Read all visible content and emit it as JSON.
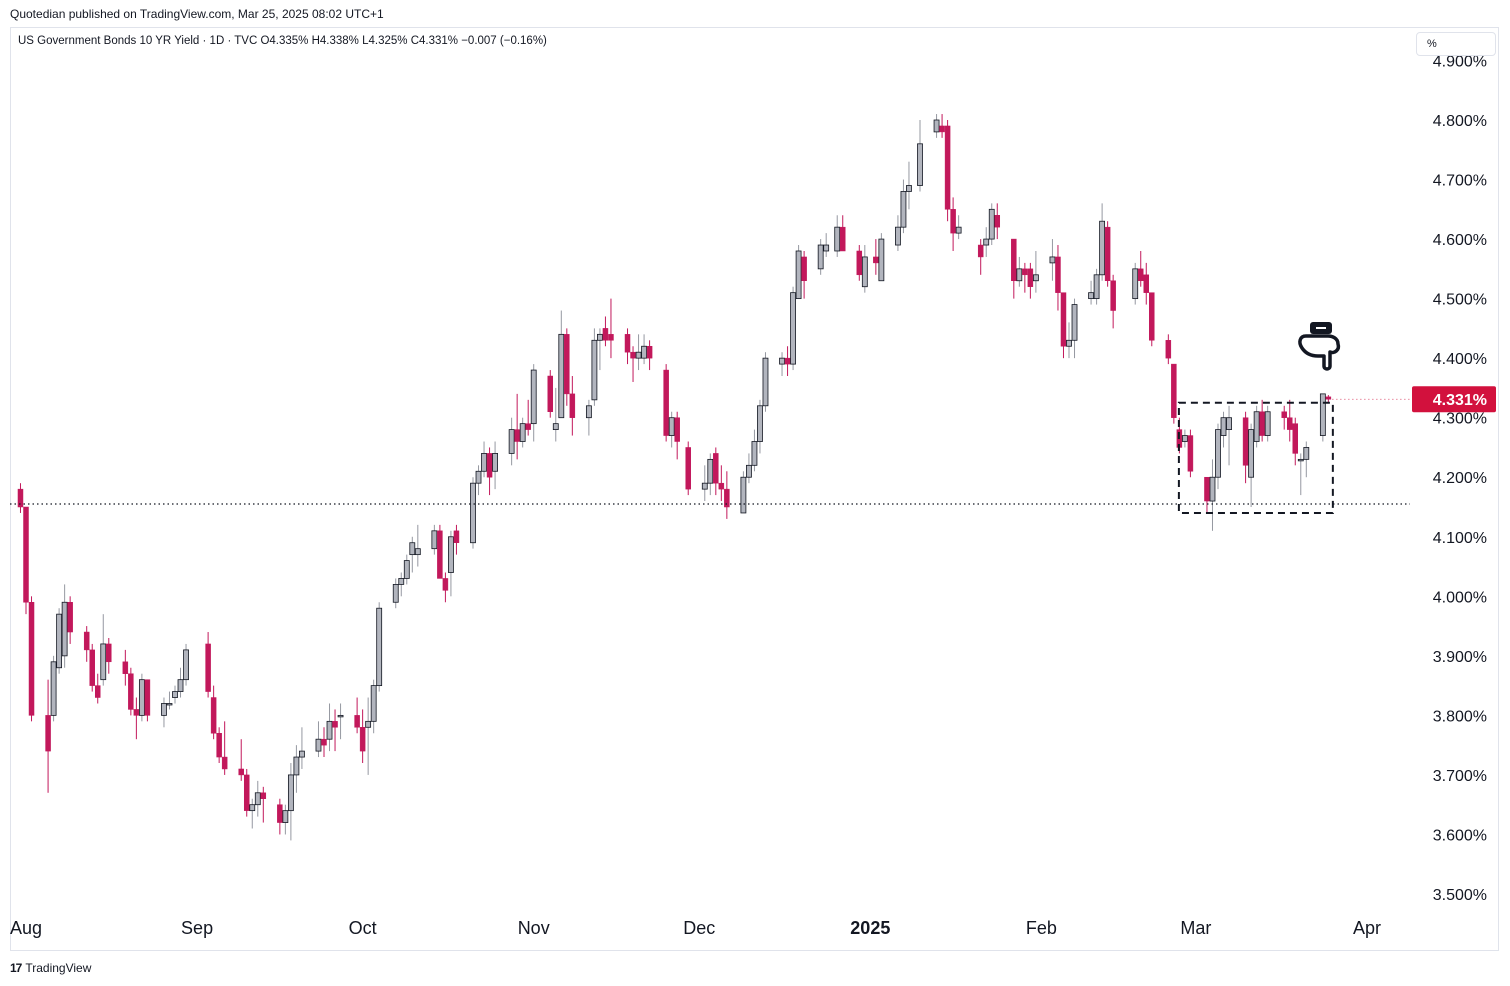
{
  "header": {
    "publisher": "Quotedian published on TradingView.com, Mar 25, 2025 08:02 UTC+1",
    "legend": "US Government Bonds 10 YR Yield · 1D · TVC  O4.335%  H4.338%  L4.325%  C4.331%  −0.007 (−0.16%)",
    "unit_button": "%"
  },
  "footer": {
    "brand": "TradingView",
    "logo": "17"
  },
  "colors": {
    "up": "#b2b5be",
    "down": "#c2185b",
    "last_price_bg": "#d2113d",
    "grid": "#f0f3fa"
  },
  "icons": {
    "annotation": "pointing-hand-down-icon"
  },
  "chart_data": {
    "type": "candlestick",
    "title": "US Government Bonds 10 YR Yield",
    "interval": "1D",
    "source": "TVC",
    "ylim": [
      3.47,
      4.92
    ],
    "yticks": [
      "3.500%",
      "3.600%",
      "3.700%",
      "3.800%",
      "3.900%",
      "4.000%",
      "4.100%",
      "4.200%",
      "4.300%",
      "4.400%",
      "4.500%",
      "4.600%",
      "4.700%",
      "4.800%",
      "4.900%"
    ],
    "xticks": [
      {
        "label": "Aug",
        "date": "2024-08-01"
      },
      {
        "label": "Sep",
        "date": "2024-09-01"
      },
      {
        "label": "Oct",
        "date": "2024-10-01"
      },
      {
        "label": "Nov",
        "date": "2024-11-01"
      },
      {
        "label": "Dec",
        "date": "2024-12-01"
      },
      {
        "label": "2025",
        "date": "2025-01-01",
        "bold": true
      },
      {
        "label": "Feb",
        "date": "2025-02-01"
      },
      {
        "label": "Mar",
        "date": "2025-03-01"
      },
      {
        "label": "Apr",
        "date": "2025-04-01"
      }
    ],
    "last_price": {
      "value": 4.331,
      "label": "4.331%"
    },
    "support_line": 4.155,
    "range_box": {
      "start": "2025-02-27",
      "end": "2025-03-24",
      "low": 4.14,
      "high": 4.325
    },
    "candles": [
      [
        "2024-07-31",
        4.18,
        4.19,
        4.14,
        4.15
      ],
      [
        "2024-08-01",
        4.15,
        4.15,
        3.97,
        3.99
      ],
      [
        "2024-08-02",
        3.99,
        4.0,
        3.79,
        3.8
      ],
      [
        "2024-08-05",
        3.8,
        3.86,
        3.67,
        3.74
      ],
      [
        "2024-08-06",
        3.8,
        3.9,
        3.79,
        3.89
      ],
      [
        "2024-08-07",
        3.88,
        3.98,
        3.87,
        3.97
      ],
      [
        "2024-08-08",
        3.9,
        4.02,
        3.88,
        3.99
      ],
      [
        "2024-08-09",
        3.99,
        4.0,
        3.92,
        3.94
      ],
      [
        "2024-08-12",
        3.94,
        3.95,
        3.89,
        3.91
      ],
      [
        "2024-08-13",
        3.91,
        3.92,
        3.84,
        3.85
      ],
      [
        "2024-08-14",
        3.85,
        3.87,
        3.82,
        3.83
      ],
      [
        "2024-08-15",
        3.86,
        3.97,
        3.85,
        3.92
      ],
      [
        "2024-08-16",
        3.92,
        3.93,
        3.87,
        3.89
      ],
      [
        "2024-08-19",
        3.89,
        3.91,
        3.85,
        3.87
      ],
      [
        "2024-08-20",
        3.87,
        3.88,
        3.8,
        3.81
      ],
      [
        "2024-08-21",
        3.81,
        3.83,
        3.76,
        3.8
      ],
      [
        "2024-08-22",
        3.8,
        3.87,
        3.79,
        3.86
      ],
      [
        "2024-08-23",
        3.86,
        3.86,
        3.79,
        3.8
      ],
      [
        "2024-08-26",
        3.8,
        3.83,
        3.78,
        3.82
      ],
      [
        "2024-08-27",
        3.82,
        3.84,
        3.81,
        3.82
      ],
      [
        "2024-08-28",
        3.83,
        3.85,
        3.82,
        3.84
      ],
      [
        "2024-08-29",
        3.84,
        3.88,
        3.83,
        3.86
      ],
      [
        "2024-08-30",
        3.86,
        3.92,
        3.85,
        3.91
      ],
      [
        "2024-09-03",
        3.92,
        3.94,
        3.83,
        3.84
      ],
      [
        "2024-09-04",
        3.83,
        3.85,
        3.76,
        3.77
      ],
      [
        "2024-09-05",
        3.77,
        3.78,
        3.72,
        3.73
      ],
      [
        "2024-09-06",
        3.73,
        3.79,
        3.7,
        3.71
      ],
      [
        "2024-09-09",
        3.71,
        3.76,
        3.69,
        3.7
      ],
      [
        "2024-09-10",
        3.7,
        3.71,
        3.63,
        3.64
      ],
      [
        "2024-09-11",
        3.64,
        3.66,
        3.61,
        3.65
      ],
      [
        "2024-09-12",
        3.65,
        3.69,
        3.63,
        3.67
      ],
      [
        "2024-09-13",
        3.67,
        3.68,
        3.62,
        3.66
      ],
      [
        "2024-09-16",
        3.65,
        3.66,
        3.6,
        3.62
      ],
      [
        "2024-09-17",
        3.62,
        3.65,
        3.6,
        3.64
      ],
      [
        "2024-09-18",
        3.64,
        3.72,
        3.59,
        3.7
      ],
      [
        "2024-09-19",
        3.7,
        3.75,
        3.67,
        3.73
      ],
      [
        "2024-09-20",
        3.73,
        3.78,
        3.71,
        3.74
      ],
      [
        "2024-09-23",
        3.74,
        3.79,
        3.73,
        3.76
      ],
      [
        "2024-09-24",
        3.76,
        3.78,
        3.73,
        3.75
      ],
      [
        "2024-09-25",
        3.76,
        3.82,
        3.74,
        3.79
      ],
      [
        "2024-09-26",
        3.79,
        3.81,
        3.74,
        3.78
      ],
      [
        "2024-09-27",
        3.8,
        3.82,
        3.76,
        3.8
      ],
      [
        "2024-09-30",
        3.8,
        3.83,
        3.77,
        3.78
      ],
      [
        "2024-10-01",
        3.78,
        3.81,
        3.72,
        3.74
      ],
      [
        "2024-10-02",
        3.78,
        3.83,
        3.7,
        3.79
      ],
      [
        "2024-10-03",
        3.79,
        3.86,
        3.77,
        3.85
      ],
      [
        "2024-10-04",
        3.85,
        3.99,
        3.84,
        3.98
      ],
      [
        "2024-10-07",
        3.99,
        4.03,
        3.98,
        4.02
      ],
      [
        "2024-10-08",
        4.02,
        4.04,
        4.0,
        4.03
      ],
      [
        "2024-10-09",
        4.03,
        4.07,
        4.02,
        4.06
      ],
      [
        "2024-10-10",
        4.07,
        4.1,
        4.04,
        4.09
      ],
      [
        "2024-10-11",
        4.07,
        4.12,
        4.05,
        4.08
      ],
      [
        "2024-10-14",
        4.08,
        4.12,
        4.07,
        4.11
      ],
      [
        "2024-10-15",
        4.11,
        4.12,
        4.03,
        4.03
      ],
      [
        "2024-10-16",
        4.03,
        4.04,
        3.99,
        4.01
      ],
      [
        "2024-10-17",
        4.04,
        4.11,
        4.0,
        4.1
      ],
      [
        "2024-10-18",
        4.11,
        4.12,
        4.07,
        4.09
      ],
      [
        "2024-10-21",
        4.09,
        4.2,
        4.08,
        4.19
      ],
      [
        "2024-10-22",
        4.19,
        4.22,
        4.17,
        4.21
      ],
      [
        "2024-10-23",
        4.21,
        4.26,
        4.2,
        4.24
      ],
      [
        "2024-10-24",
        4.24,
        4.25,
        4.17,
        4.2
      ],
      [
        "2024-10-25",
        4.21,
        4.26,
        4.18,
        4.24
      ],
      [
        "2024-10-28",
        4.24,
        4.3,
        4.22,
        4.28
      ],
      [
        "2024-10-29",
        4.28,
        4.34,
        4.23,
        4.26
      ],
      [
        "2024-10-30",
        4.26,
        4.3,
        4.25,
        4.29
      ],
      [
        "2024-10-31",
        4.29,
        4.33,
        4.27,
        4.28
      ],
      [
        "2024-11-01",
        4.29,
        4.39,
        4.26,
        4.38
      ],
      [
        "2024-11-04",
        4.37,
        4.38,
        4.3,
        4.31
      ],
      [
        "2024-11-05",
        4.28,
        4.35,
        4.26,
        4.29
      ],
      [
        "2024-11-06",
        4.3,
        4.48,
        4.3,
        4.44
      ],
      [
        "2024-11-07",
        4.44,
        4.45,
        4.32,
        4.34
      ],
      [
        "2024-11-08",
        4.34,
        4.37,
        4.27,
        4.3
      ],
      [
        "2024-11-11",
        4.3,
        4.33,
        4.27,
        4.32
      ],
      [
        "2024-11-12",
        4.33,
        4.45,
        4.32,
        4.43
      ],
      [
        "2024-11-13",
        4.43,
        4.45,
        4.38,
        4.44
      ],
      [
        "2024-11-14",
        4.45,
        4.47,
        4.42,
        4.43
      ],
      [
        "2024-11-15",
        4.44,
        4.5,
        4.4,
        4.43
      ],
      [
        "2024-11-18",
        4.44,
        4.45,
        4.39,
        4.41
      ],
      [
        "2024-11-19",
        4.41,
        4.42,
        4.36,
        4.4
      ],
      [
        "2024-11-20",
        4.4,
        4.44,
        4.38,
        4.41
      ],
      [
        "2024-11-21",
        4.4,
        4.44,
        4.39,
        4.42
      ],
      [
        "2024-11-22",
        4.42,
        4.43,
        4.38,
        4.4
      ],
      [
        "2024-11-25",
        4.38,
        4.39,
        4.26,
        4.27
      ],
      [
        "2024-11-26",
        4.27,
        4.31,
        4.25,
        4.3
      ],
      [
        "2024-11-27",
        4.3,
        4.31,
        4.23,
        4.26
      ],
      [
        "2024-11-29",
        4.25,
        4.26,
        4.17,
        4.18
      ],
      [
        "2024-12-02",
        4.18,
        4.22,
        4.16,
        4.19
      ],
      [
        "2024-12-03",
        4.19,
        4.24,
        4.17,
        4.23
      ],
      [
        "2024-12-04",
        4.24,
        4.25,
        4.17,
        4.19
      ],
      [
        "2024-12-05",
        4.19,
        4.22,
        4.16,
        4.18
      ],
      [
        "2024-12-06",
        4.18,
        4.21,
        4.13,
        4.15
      ],
      [
        "2024-12-09",
        4.14,
        4.21,
        4.14,
        4.2
      ],
      [
        "2024-12-10",
        4.2,
        4.24,
        4.19,
        4.22
      ],
      [
        "2024-12-11",
        4.22,
        4.28,
        4.21,
        4.26
      ],
      [
        "2024-12-12",
        4.26,
        4.33,
        4.24,
        4.32
      ],
      [
        "2024-12-13",
        4.32,
        4.41,
        4.31,
        4.4
      ],
      [
        "2024-12-16",
        4.39,
        4.41,
        4.37,
        4.4
      ],
      [
        "2024-12-17",
        4.4,
        4.42,
        4.37,
        4.39
      ],
      [
        "2024-12-18",
        4.39,
        4.52,
        4.38,
        4.51
      ],
      [
        "2024-12-19",
        4.5,
        4.59,
        4.5,
        4.58
      ],
      [
        "2024-12-20",
        4.57,
        4.58,
        4.5,
        4.53
      ],
      [
        "2024-12-23",
        4.55,
        4.6,
        4.54,
        4.59
      ],
      [
        "2024-12-24",
        4.58,
        4.61,
        4.57,
        4.59
      ],
      [
        "2024-12-26",
        4.58,
        4.64,
        4.57,
        4.62
      ],
      [
        "2024-12-27",
        4.62,
        4.64,
        4.59,
        4.58
      ],
      [
        "2024-12-30",
        4.58,
        4.59,
        4.53,
        4.54
      ],
      [
        "2024-12-31",
        4.52,
        4.59,
        4.51,
        4.57
      ],
      [
        "2025-01-02",
        4.57,
        4.6,
        4.54,
        4.56
      ],
      [
        "2025-01-03",
        4.53,
        4.61,
        4.53,
        4.6
      ],
      [
        "2025-01-06",
        4.59,
        4.64,
        4.58,
        4.62
      ],
      [
        "2025-01-07",
        4.62,
        4.7,
        4.61,
        4.68
      ],
      [
        "2025-01-08",
        4.68,
        4.73,
        4.65,
        4.69
      ],
      [
        "2025-01-10",
        4.69,
        4.8,
        4.68,
        4.76
      ],
      [
        "2025-01-13",
        4.78,
        4.81,
        4.77,
        4.8
      ],
      [
        "2025-01-14",
        4.79,
        4.81,
        4.77,
        4.78
      ],
      [
        "2025-01-15",
        4.79,
        4.8,
        4.63,
        4.65
      ],
      [
        "2025-01-16",
        4.65,
        4.67,
        4.58,
        4.61
      ],
      [
        "2025-01-17",
        4.61,
        4.64,
        4.6,
        4.62
      ],
      [
        "2025-01-21",
        4.59,
        4.6,
        4.54,
        4.57
      ],
      [
        "2025-01-22",
        4.59,
        4.62,
        4.57,
        4.6
      ],
      [
        "2025-01-23",
        4.6,
        4.66,
        4.59,
        4.65
      ],
      [
        "2025-01-24",
        4.64,
        4.66,
        4.6,
        4.62
      ],
      [
        "2025-01-27",
        4.6,
        4.6,
        4.5,
        4.53
      ],
      [
        "2025-01-28",
        4.53,
        4.57,
        4.52,
        4.55
      ],
      [
        "2025-01-29",
        4.55,
        4.56,
        4.51,
        4.54
      ],
      [
        "2025-01-30",
        4.55,
        4.56,
        4.5,
        4.52
      ],
      [
        "2025-01-31",
        4.53,
        4.58,
        4.51,
        4.54
      ],
      [
        "2025-02-03",
        4.56,
        4.6,
        4.53,
        4.57
      ],
      [
        "2025-02-04",
        4.57,
        4.59,
        4.48,
        4.51
      ],
      [
        "2025-02-05",
        4.51,
        4.51,
        4.4,
        4.42
      ],
      [
        "2025-02-06",
        4.42,
        4.46,
        4.4,
        4.43
      ],
      [
        "2025-02-07",
        4.43,
        4.5,
        4.4,
        4.49
      ],
      [
        "2025-02-10",
        4.5,
        4.53,
        4.49,
        4.51
      ],
      [
        "2025-02-11",
        4.5,
        4.55,
        4.49,
        4.54
      ],
      [
        "2025-02-12",
        4.54,
        4.66,
        4.53,
        4.63
      ],
      [
        "2025-02-13",
        4.62,
        4.63,
        4.52,
        4.53
      ],
      [
        "2025-02-14",
        4.53,
        4.54,
        4.45,
        4.48
      ],
      [
        "2025-02-18",
        4.5,
        4.56,
        4.49,
        4.55
      ],
      [
        "2025-02-19",
        4.55,
        4.58,
        4.52,
        4.53
      ],
      [
        "2025-02-20",
        4.54,
        4.56,
        4.49,
        4.51
      ],
      [
        "2025-02-21",
        4.51,
        4.51,
        4.42,
        4.43
      ],
      [
        "2025-02-24",
        4.43,
        4.44,
        4.39,
        4.4
      ],
      [
        "2025-02-25",
        4.39,
        4.39,
        4.29,
        4.3
      ],
      [
        "2025-02-26",
        4.28,
        4.3,
        4.24,
        4.25
      ],
      [
        "2025-02-27",
        4.26,
        4.28,
        4.25,
        4.27
      ],
      [
        "2025-02-28",
        4.27,
        4.28,
        4.2,
        4.21
      ],
      [
        "2025-03-03",
        4.2,
        4.2,
        4.14,
        4.16
      ],
      [
        "2025-03-04",
        4.16,
        4.23,
        4.11,
        4.2
      ],
      [
        "2025-03-05",
        4.2,
        4.29,
        4.18,
        4.28
      ],
      [
        "2025-03-06",
        4.27,
        4.31,
        4.25,
        4.3
      ],
      [
        "2025-03-07",
        4.28,
        4.32,
        4.22,
        4.3
      ],
      [
        "2025-03-10",
        4.3,
        4.31,
        4.19,
        4.22
      ],
      [
        "2025-03-11",
        4.2,
        4.29,
        4.15,
        4.28
      ],
      [
        "2025-03-12",
        4.26,
        4.32,
        4.25,
        4.31
      ],
      [
        "2025-03-13",
        4.31,
        4.33,
        4.26,
        4.27
      ],
      [
        "2025-03-14",
        4.27,
        4.32,
        4.26,
        4.31
      ],
      [
        "2025-03-17",
        4.31,
        4.32,
        4.28,
        4.3
      ],
      [
        "2025-03-18",
        4.3,
        4.33,
        4.26,
        4.28
      ],
      [
        "2025-03-19",
        4.29,
        4.3,
        4.22,
        4.24
      ],
      [
        "2025-03-20",
        4.23,
        4.24,
        4.17,
        4.23
      ],
      [
        "2025-03-21",
        4.23,
        4.26,
        4.2,
        4.25
      ],
      [
        "2025-03-24",
        4.27,
        4.34,
        4.26,
        4.34
      ],
      [
        "2025-03-25",
        4.335,
        4.338,
        4.325,
        4.331
      ]
    ]
  }
}
